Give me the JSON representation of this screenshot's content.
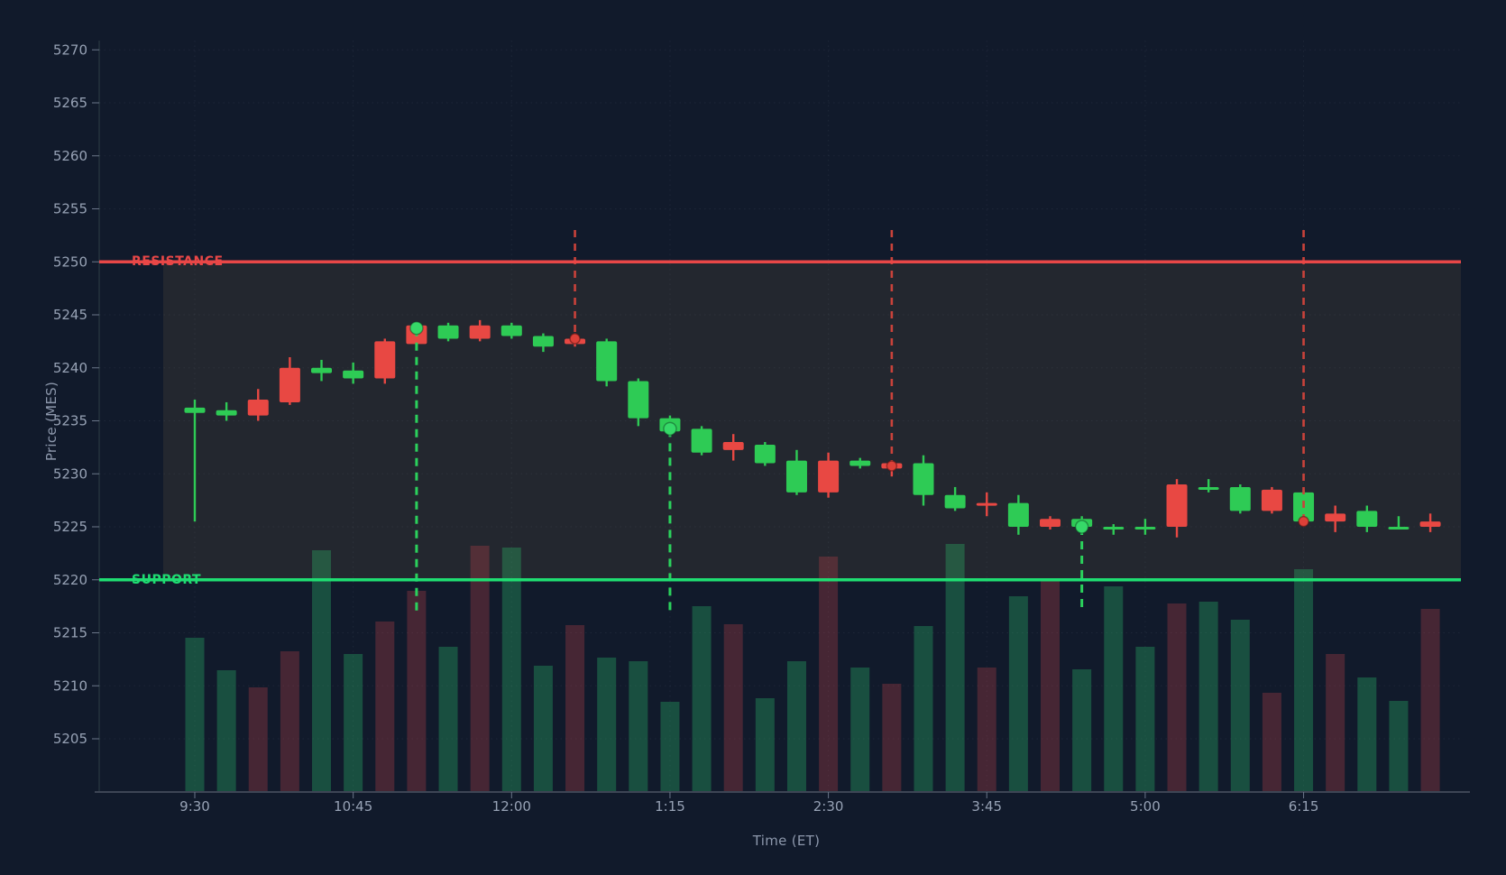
{
  "chart_data": {
    "type": "candlestick",
    "title": "",
    "xlabel": "Time (ET)",
    "ylabel": "Price (MES)",
    "interval": "15min",
    "grid": true,
    "ylim": [
      5200,
      5271.5
    ],
    "y_ticks": [
      5205,
      5210,
      5215,
      5220,
      5225,
      5230,
      5235,
      5240,
      5245,
      5250,
      5255,
      5260,
      5265,
      5270
    ],
    "x_tick_labels": [
      "9:30",
      "10:45",
      "12:00",
      "1:15",
      "2:30",
      "3:45",
      "5:00",
      "6:15"
    ],
    "x_tick_indices": [
      0,
      5,
      10,
      15,
      20,
      25,
      30,
      35
    ],
    "levels": {
      "resistance": {
        "label": "RESISTANCE",
        "price": 5250
      },
      "support": {
        "label": "SUPPORT",
        "price": 5220
      },
      "zone": {
        "from": 5220,
        "to": 5250
      }
    },
    "candles": [
      {
        "time": "9:30",
        "o": 5235.75,
        "h": 5237.0,
        "l": 5225.5,
        "c": 5236.25,
        "dir": "up",
        "volume": 170
      },
      {
        "time": "9:45",
        "o": 5235.5,
        "h": 5236.75,
        "l": 5235.0,
        "c": 5236.0,
        "dir": "up",
        "volume": 134
      },
      {
        "time": "10:00",
        "o": 5237.0,
        "h": 5238.0,
        "l": 5235.0,
        "c": 5235.5,
        "dir": "down",
        "volume": 115
      },
      {
        "time": "10:15",
        "o": 5240.0,
        "h": 5241.0,
        "l": 5236.5,
        "c": 5236.75,
        "dir": "down",
        "volume": 155
      },
      {
        "time": "10:30",
        "o": 5239.5,
        "h": 5240.75,
        "l": 5238.75,
        "c": 5240.0,
        "dir": "up",
        "volume": 267
      },
      {
        "time": "10:45",
        "o": 5239.0,
        "h": 5240.5,
        "l": 5238.5,
        "c": 5239.75,
        "dir": "up",
        "volume": 152
      },
      {
        "time": "11:00",
        "o": 5242.5,
        "h": 5242.75,
        "l": 5238.5,
        "c": 5239.0,
        "dir": "down",
        "volume": 188
      },
      {
        "time": "11:15",
        "o": 5244.0,
        "h": 5244.25,
        "l": 5242.0,
        "c": 5242.25,
        "dir": "down",
        "volume": 222
      },
      {
        "time": "11:30",
        "o": 5242.75,
        "h": 5244.25,
        "l": 5242.5,
        "c": 5244.0,
        "dir": "up",
        "volume": 160
      },
      {
        "time": "11:45",
        "o": 5244.0,
        "h": 5244.5,
        "l": 5242.5,
        "c": 5242.75,
        "dir": "down",
        "volume": 272
      },
      {
        "time": "12:00",
        "o": 5243.0,
        "h": 5244.25,
        "l": 5242.75,
        "c": 5244.0,
        "dir": "up",
        "volume": 270
      },
      {
        "time": "12:15",
        "o": 5242.0,
        "h": 5243.25,
        "l": 5241.5,
        "c": 5243.0,
        "dir": "up",
        "volume": 139
      },
      {
        "time": "12:30",
        "o": 5242.75,
        "h": 5243.25,
        "l": 5242.0,
        "c": 5242.25,
        "dir": "down",
        "volume": 184
      },
      {
        "time": "12:45",
        "o": 5238.75,
        "h": 5242.75,
        "l": 5238.25,
        "c": 5242.5,
        "dir": "up",
        "volume": 148
      },
      {
        "time": "1:00",
        "o": 5235.25,
        "h": 5239.0,
        "l": 5234.5,
        "c": 5238.75,
        "dir": "up",
        "volume": 144
      },
      {
        "time": "1:15",
        "o": 5234.0,
        "h": 5235.5,
        "l": 5233.75,
        "c": 5235.25,
        "dir": "up",
        "volume": 99
      },
      {
        "time": "1:30",
        "o": 5232.0,
        "h": 5234.5,
        "l": 5231.75,
        "c": 5234.25,
        "dir": "up",
        "volume": 205
      },
      {
        "time": "1:45",
        "o": 5233.0,
        "h": 5233.75,
        "l": 5231.25,
        "c": 5232.25,
        "dir": "down",
        "volume": 185
      },
      {
        "time": "2:00",
        "o": 5231.0,
        "h": 5233.0,
        "l": 5230.75,
        "c": 5232.75,
        "dir": "up",
        "volume": 103
      },
      {
        "time": "2:15",
        "o": 5228.25,
        "h": 5232.25,
        "l": 5228.0,
        "c": 5231.25,
        "dir": "up",
        "volume": 144
      },
      {
        "time": "2:30",
        "o": 5231.25,
        "h": 5232.0,
        "l": 5227.75,
        "c": 5228.25,
        "dir": "down",
        "volume": 260
      },
      {
        "time": "2:45",
        "o": 5230.75,
        "h": 5231.5,
        "l": 5230.5,
        "c": 5231.25,
        "dir": "up",
        "volume": 137
      },
      {
        "time": "3:00",
        "o": 5231.0,
        "h": 5231.25,
        "l": 5229.75,
        "c": 5230.5,
        "dir": "down",
        "volume": 119
      },
      {
        "time": "3:15",
        "o": 5228.0,
        "h": 5231.75,
        "l": 5227.0,
        "c": 5231.0,
        "dir": "up",
        "volume": 183
      },
      {
        "time": "3:30",
        "o": 5226.75,
        "h": 5228.75,
        "l": 5226.5,
        "c": 5228.0,
        "dir": "up",
        "volume": 274
      },
      {
        "time": "3:45",
        "o": 5227.25,
        "h": 5228.25,
        "l": 5226.0,
        "c": 5227.0,
        "dir": "down",
        "volume": 137
      },
      {
        "time": "4:00",
        "o": 5225.0,
        "h": 5228.0,
        "l": 5224.25,
        "c": 5227.25,
        "dir": "up",
        "volume": 216
      },
      {
        "time": "4:15",
        "o": 5225.75,
        "h": 5226.0,
        "l": 5224.75,
        "c": 5225.0,
        "dir": "down",
        "volume": 233
      },
      {
        "time": "4:30",
        "o": 5225.0,
        "h": 5226.0,
        "l": 5224.5,
        "c": 5225.75,
        "dir": "up",
        "volume": 135
      },
      {
        "time": "4:45",
        "o": 5224.75,
        "h": 5225.25,
        "l": 5224.25,
        "c": 5225.0,
        "dir": "up",
        "volume": 227
      },
      {
        "time": "5:00",
        "o": 5224.75,
        "h": 5225.75,
        "l": 5224.25,
        "c": 5225.0,
        "dir": "up",
        "volume": 160
      },
      {
        "time": "5:15",
        "o": 5229.0,
        "h": 5229.5,
        "l": 5224.0,
        "c": 5225.0,
        "dir": "down",
        "volume": 208
      },
      {
        "time": "5:30",
        "o": 5228.5,
        "h": 5229.5,
        "l": 5228.25,
        "c": 5228.75,
        "dir": "up",
        "volume": 210
      },
      {
        "time": "5:45",
        "o": 5226.5,
        "h": 5229.0,
        "l": 5226.25,
        "c": 5228.75,
        "dir": "up",
        "volume": 190
      },
      {
        "time": "6:00",
        "o": 5228.5,
        "h": 5228.75,
        "l": 5226.25,
        "c": 5226.5,
        "dir": "down",
        "volume": 109
      },
      {
        "time": "6:15",
        "o": 5225.5,
        "h": 5228.5,
        "l": 5225.25,
        "c": 5228.25,
        "dir": "up",
        "volume": 246
      },
      {
        "time": "6:30",
        "o": 5226.25,
        "h": 5227.0,
        "l": 5224.5,
        "c": 5225.5,
        "dir": "down",
        "volume": 152
      },
      {
        "time": "6:45",
        "o": 5225.0,
        "h": 5227.0,
        "l": 5224.5,
        "c": 5226.5,
        "dir": "up",
        "volume": 126
      },
      {
        "time": "7:00",
        "o": 5224.75,
        "h": 5226.0,
        "l": 5224.75,
        "c": 5225.0,
        "dir": "up",
        "volume": 100
      },
      {
        "time": "7:15",
        "o": 5225.5,
        "h": 5226.25,
        "l": 5224.5,
        "c": 5225.0,
        "dir": "down",
        "volume": 202
      }
    ],
    "signals": {
      "buys": [
        {
          "index": 7,
          "time": "11:15",
          "price": 5243.75
        },
        {
          "index": 15,
          "time": "1:15",
          "price": 5234.25
        },
        {
          "index": 28,
          "time": "4:30",
          "price": 5225.0
        }
      ],
      "sells": [
        {
          "index": 12,
          "time": "12:30",
          "price": 5242.75
        },
        {
          "index": 22,
          "time": "3:00",
          "price": 5230.75
        },
        {
          "index": 35,
          "time": "6:15",
          "price": 5225.5
        }
      ],
      "buy_line_low": 5217,
      "sell_line_high": 5253
    },
    "colors": {
      "background": "#111a2b",
      "zone_fill": "#23272f",
      "up": "#2ecb55",
      "down": "#e84843",
      "support_line": "#1fdd72",
      "resistance_line": "#e84747",
      "buy_marker": "#36d968",
      "sell_marker": "#dd4038",
      "buy_dash": "#2bd15c",
      "sell_dash": "#c9423a",
      "volume_up": "rgba(46,203,113,0.30)",
      "volume_down": "rgba(224,72,80,0.26)",
      "tick_text": "#97a2b5",
      "axis_line": "#3d4555"
    }
  }
}
